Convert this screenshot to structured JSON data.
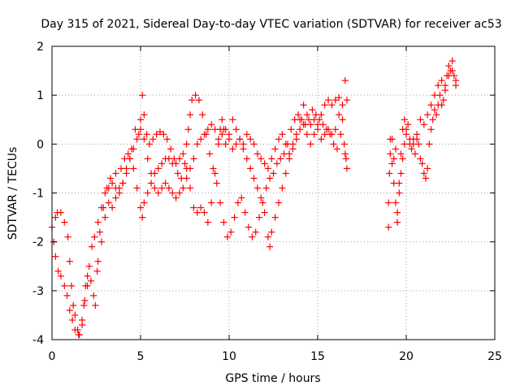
{
  "chart_data": {
    "type": "scatter",
    "title": "Day 315 of 2021, Sidereal Day-to-day VTEC variation (SDTVAR) for receiver ac53",
    "xlabel": "GPS time / hours",
    "ylabel": "SDTVAR / TECUs",
    "xlim": [
      0,
      25
    ],
    "ylim": [
      -4,
      2
    ],
    "xticks": [
      "0",
      "5",
      "10",
      "15",
      "20",
      "25"
    ],
    "yticks": [
      "-4",
      "-3",
      "-2",
      "-1",
      "0",
      "1",
      "2"
    ],
    "grid": true,
    "marker": "+",
    "series_color": "#ff0000",
    "tracks": [
      [
        [
          0.0,
          -1.7
        ],
        [
          0.2,
          -1.5
        ],
        [
          0.3,
          -1.4
        ],
        [
          0.5,
          -1.4
        ],
        [
          0.7,
          -1.6
        ],
        [
          0.9,
          -1.9
        ],
        [
          1.0,
          -2.4
        ],
        [
          1.1,
          -2.9
        ],
        [
          1.2,
          -3.3
        ],
        [
          1.3,
          -3.5
        ],
        [
          1.45,
          -3.8
        ],
        [
          1.55,
          -3.9
        ],
        [
          1.7,
          -3.7
        ],
        [
          1.8,
          -3.3
        ],
        [
          1.9,
          -2.9
        ],
        [
          2.0,
          -2.7
        ],
        [
          2.2,
          -2.8
        ],
        [
          2.35,
          -3.1
        ],
        [
          2.45,
          -3.3
        ],
        [
          2.55,
          -2.6
        ],
        [
          2.7,
          -1.8
        ],
        [
          2.9,
          -1.3
        ],
        [
          3.1,
          -0.9
        ],
        [
          3.3,
          -0.7
        ],
        [
          3.6,
          -0.6
        ],
        [
          3.9,
          -0.5
        ],
        [
          4.1,
          -0.3
        ],
        [
          4.3,
          -0.2
        ],
        [
          4.5,
          -0.1
        ],
        [
          4.7,
          0.3
        ],
        [
          4.9,
          0.2
        ],
        [
          5.0,
          0.5
        ],
        [
          5.1,
          1.0
        ],
        [
          5.2,
          0.6
        ],
        [
          5.35,
          0.2
        ],
        [
          5.5,
          0.0
        ],
        [
          5.7,
          0.1
        ],
        [
          5.9,
          0.2
        ],
        [
          6.1,
          0.25
        ],
        [
          6.3,
          0.2
        ],
        [
          6.5,
          0.1
        ],
        [
          6.7,
          -0.1
        ],
        [
          6.9,
          -0.3
        ],
        [
          7.1,
          -0.6
        ],
        [
          7.3,
          -0.7
        ],
        [
          7.5,
          -0.4
        ],
        [
          7.6,
          0.0
        ],
        [
          7.7,
          0.3
        ],
        [
          7.8,
          0.6
        ],
        [
          7.9,
          0.9
        ],
        [
          8.1,
          1.0
        ],
        [
          8.3,
          0.9
        ],
        [
          8.5,
          0.6
        ],
        [
          8.7,
          0.2
        ],
        [
          8.9,
          -0.2
        ],
        [
          9.1,
          -0.5
        ],
        [
          9.3,
          -0.8
        ],
        [
          9.5,
          -1.2
        ],
        [
          9.7,
          -1.6
        ],
        [
          9.9,
          -1.9
        ],
        [
          10.1,
          -1.8
        ],
        [
          10.3,
          -1.5
        ],
        [
          10.5,
          -1.2
        ],
        [
          10.7,
          -1.1
        ],
        [
          10.9,
          -1.4
        ],
        [
          11.1,
          -1.7
        ],
        [
          11.3,
          -1.9
        ],
        [
          11.5,
          -1.8
        ],
        [
          11.7,
          -1.5
        ],
        [
          11.9,
          -1.2
        ],
        [
          12.1,
          -0.9
        ],
        [
          12.3,
          -0.7
        ],
        [
          12.5,
          -0.6
        ],
        [
          12.7,
          -0.4
        ],
        [
          12.9,
          -0.3
        ],
        [
          13.1,
          -0.2
        ],
        [
          13.3,
          0.0
        ],
        [
          13.5,
          0.3
        ],
        [
          13.7,
          0.5
        ],
        [
          13.9,
          0.6
        ],
        [
          14.1,
          0.5
        ],
        [
          14.3,
          0.4
        ],
        [
          14.5,
          0.5
        ],
        [
          14.7,
          0.7
        ],
        [
          14.9,
          0.6
        ],
        [
          15.1,
          0.5
        ],
        [
          15.3,
          0.4
        ],
        [
          15.5,
          0.3
        ],
        [
          15.7,
          0.2
        ],
        [
          15.9,
          0.0
        ],
        [
          16.1,
          -0.1
        ],
        [
          16.3,
          0.2
        ],
        [
          16.5,
          0.0
        ],
        [
          16.6,
          -0.3
        ]
      ],
      [
        [
          0.1,
          -2.0
        ],
        [
          0.2,
          -2.3
        ],
        [
          0.35,
          -2.6
        ],
        [
          0.5,
          -2.7
        ],
        [
          0.7,
          -2.9
        ],
        [
          0.85,
          -3.1
        ],
        [
          1.0,
          -3.4
        ],
        [
          1.15,
          -3.6
        ],
        [
          1.3,
          -3.8
        ],
        [
          1.5,
          -3.9
        ],
        [
          1.7,
          -3.6
        ],
        [
          1.85,
          -3.2
        ],
        [
          2.0,
          -2.9
        ],
        [
          2.1,
          -2.5
        ],
        [
          2.25,
          -2.1
        ],
        [
          2.4,
          -1.9
        ],
        [
          2.6,
          -1.6
        ],
        [
          2.8,
          -1.3
        ],
        [
          3.0,
          -1.0
        ],
        [
          3.2,
          -0.9
        ],
        [
          3.4,
          -0.8
        ],
        [
          3.6,
          -0.9
        ],
        [
          3.8,
          -1.0
        ],
        [
          4.0,
          -0.8
        ],
        [
          4.2,
          -0.5
        ],
        [
          4.4,
          -0.3
        ],
        [
          4.6,
          -0.5
        ],
        [
          4.8,
          -0.9
        ],
        [
          5.0,
          -1.3
        ],
        [
          5.1,
          -1.5
        ],
        [
          5.2,
          -1.2
        ],
        [
          5.4,
          -1.0
        ],
        [
          5.6,
          -0.8
        ],
        [
          5.8,
          -0.6
        ],
        [
          6.0,
          -0.5
        ],
        [
          6.2,
          -0.4
        ],
        [
          6.4,
          -0.3
        ],
        [
          6.6,
          -0.3
        ],
        [
          6.8,
          -0.4
        ],
        [
          7.0,
          -0.4
        ],
        [
          7.2,
          -0.3
        ],
        [
          7.4,
          -0.2
        ],
        [
          7.6,
          -0.5
        ],
        [
          7.8,
          -0.9
        ],
        [
          8.0,
          -1.3
        ],
        [
          8.2,
          -1.4
        ],
        [
          8.4,
          -1.3
        ],
        [
          8.6,
          -1.4
        ],
        [
          8.8,
          -1.6
        ],
        [
          9.0,
          -1.2
        ],
        [
          9.2,
          -0.6
        ],
        [
          9.4,
          0.0
        ],
        [
          9.5,
          0.3
        ],
        [
          9.6,
          0.5
        ],
        [
          9.7,
          0.3
        ],
        [
          9.8,
          0.0
        ],
        [
          10.0,
          0.2
        ],
        [
          10.2,
          0.5
        ],
        [
          10.4,
          0.3
        ],
        [
          10.6,
          0.1
        ],
        [
          10.8,
          -0.1
        ],
        [
          11.0,
          -0.3
        ],
        [
          11.2,
          -0.5
        ],
        [
          11.4,
          -0.7
        ],
        [
          11.6,
          -0.9
        ],
        [
          11.8,
          -1.1
        ],
        [
          12.0,
          -1.4
        ],
        [
          12.2,
          -1.9
        ],
        [
          12.3,
          -2.1
        ],
        [
          12.4,
          -1.8
        ],
        [
          12.6,
          -1.5
        ],
        [
          12.8,
          -1.2
        ],
        [
          13.0,
          -0.9
        ],
        [
          13.2,
          -0.6
        ],
        [
          13.4,
          -0.3
        ],
        [
          13.6,
          0.0
        ],
        [
          13.8,
          0.2
        ],
        [
          14.0,
          0.5
        ],
        [
          14.2,
          0.8
        ],
        [
          14.4,
          0.6
        ],
        [
          14.6,
          0.4
        ],
        [
          14.8,
          0.5
        ],
        [
          15.0,
          0.4
        ],
        [
          15.2,
          0.6
        ],
        [
          15.4,
          0.8
        ],
        [
          15.6,
          0.9
        ],
        [
          15.8,
          0.8
        ],
        [
          16.0,
          0.9
        ],
        [
          16.2,
          0.95
        ],
        [
          16.4,
          0.8
        ],
        [
          16.55,
          1.3
        ],
        [
          16.65,
          0.9
        ]
      ],
      [
        [
          2.6,
          -2.4
        ],
        [
          2.8,
          -2.0
        ],
        [
          3.0,
          -1.5
        ],
        [
          3.2,
          -1.2
        ],
        [
          3.4,
          -1.3
        ],
        [
          3.6,
          -1.1
        ],
        [
          3.8,
          -0.9
        ],
        [
          4.0,
          -0.8
        ],
        [
          4.2,
          -0.6
        ],
        [
          4.4,
          -0.3
        ],
        [
          4.6,
          -0.1
        ],
        [
          4.8,
          0.1
        ],
        [
          5.0,
          0.3
        ],
        [
          5.2,
          0.1
        ],
        [
          5.4,
          -0.3
        ],
        [
          5.6,
          -0.6
        ],
        [
          5.8,
          -0.9
        ],
        [
          6.0,
          -1.0
        ],
        [
          6.2,
          -0.9
        ],
        [
          6.4,
          -0.8
        ],
        [
          6.6,
          -0.9
        ],
        [
          6.8,
          -1.0
        ],
        [
          7.0,
          -1.1
        ],
        [
          7.2,
          -1.0
        ],
        [
          7.4,
          -0.9
        ],
        [
          7.6,
          -0.7
        ],
        [
          7.8,
          -0.5
        ],
        [
          8.0,
          -0.3
        ],
        [
          8.2,
          0.0
        ],
        [
          8.4,
          0.1
        ],
        [
          8.6,
          0.2
        ],
        [
          8.8,
          0.3
        ],
        [
          9.0,
          0.4
        ],
        [
          9.2,
          0.3
        ],
        [
          9.4,
          0.1
        ],
        [
          9.6,
          0.2
        ],
        [
          9.8,
          0.3
        ],
        [
          10.0,
          0.1
        ],
        [
          10.2,
          -0.1
        ],
        [
          10.4,
          0.0
        ],
        [
          10.6,
          0.1
        ],
        [
          10.8,
          0.0
        ],
        [
          11.0,
          0.2
        ],
        [
          11.2,
          0.1
        ],
        [
          11.4,
          0.0
        ],
        [
          11.6,
          -0.2
        ],
        [
          11.8,
          -0.3
        ],
        [
          12.0,
          -0.4
        ],
        [
          12.2,
          -0.5
        ],
        [
          12.4,
          -0.3
        ],
        [
          12.6,
          -0.1
        ],
        [
          12.8,
          0.1
        ],
        [
          13.0,
          0.2
        ],
        [
          13.2,
          0.0
        ],
        [
          13.4,
          -0.2
        ],
        [
          13.6,
          -0.1
        ],
        [
          13.8,
          0.1
        ],
        [
          14.0,
          0.3
        ],
        [
          14.2,
          0.4
        ],
        [
          14.4,
          0.2
        ],
        [
          14.6,
          0.0
        ],
        [
          14.8,
          0.2
        ],
        [
          15.0,
          0.3
        ],
        [
          15.2,
          0.1
        ],
        [
          15.4,
          0.2
        ],
        [
          15.6,
          0.3
        ],
        [
          15.8,
          0.2
        ],
        [
          16.0,
          0.3
        ],
        [
          16.2,
          0.6
        ],
        [
          16.4,
          0.5
        ],
        [
          16.55,
          -0.2
        ],
        [
          16.65,
          -0.5
        ]
      ],
      [
        [
          19.0,
          -1.7
        ],
        [
          19.0,
          -1.2
        ],
        [
          19.05,
          -0.6
        ],
        [
          19.1,
          -0.2
        ],
        [
          19.2,
          0.1
        ],
        [
          19.3,
          -0.3
        ],
        [
          19.4,
          -0.1
        ],
        [
          19.5,
          -1.4
        ],
        [
          19.6,
          -1.0
        ],
        [
          19.7,
          -0.6
        ],
        [
          19.8,
          -0.3
        ],
        [
          19.9,
          0.0
        ],
        [
          20.0,
          0.2
        ],
        [
          20.1,
          0.4
        ],
        [
          20.2,
          0.1
        ],
        [
          20.3,
          -0.1
        ],
        [
          20.4,
          0.0
        ],
        [
          20.5,
          -0.2
        ],
        [
          20.6,
          0.1
        ],
        [
          20.7,
          0.0
        ],
        [
          20.8,
          -0.3
        ],
        [
          20.9,
          -0.4
        ],
        [
          21.0,
          -0.6
        ],
        [
          21.1,
          -0.7
        ],
        [
          21.2,
          -0.5
        ],
        [
          21.3,
          0.0
        ],
        [
          21.4,
          0.3
        ],
        [
          21.5,
          0.5
        ],
        [
          21.6,
          0.7
        ],
        [
          21.7,
          0.6
        ],
        [
          21.8,
          0.8
        ],
        [
          21.9,
          1.0
        ],
        [
          22.0,
          0.8
        ],
        [
          22.1,
          0.9
        ],
        [
          22.2,
          1.1
        ],
        [
          22.3,
          1.4
        ],
        [
          22.4,
          1.6
        ],
        [
          22.5,
          1.5
        ],
        [
          22.6,
          1.7
        ],
        [
          22.7,
          1.4
        ],
        [
          22.8,
          1.2
        ]
      ],
      [
        [
          19.1,
          0.1
        ],
        [
          19.2,
          -0.4
        ],
        [
          19.3,
          -0.8
        ],
        [
          19.4,
          -1.2
        ],
        [
          19.5,
          -1.6
        ],
        [
          19.6,
          -0.8
        ],
        [
          19.7,
          -0.2
        ],
        [
          19.8,
          0.3
        ],
        [
          19.9,
          0.5
        ],
        [
          20.0,
          0.3
        ],
        [
          20.2,
          0.0
        ],
        [
          20.4,
          0.1
        ],
        [
          20.6,
          0.2
        ],
        [
          20.8,
          0.5
        ],
        [
          21.0,
          0.4
        ],
        [
          21.2,
          0.6
        ],
        [
          21.4,
          0.8
        ],
        [
          21.6,
          1.0
        ],
        [
          21.8,
          1.2
        ],
        [
          22.0,
          1.3
        ],
        [
          22.2,
          1.2
        ],
        [
          22.4,
          1.4
        ],
        [
          22.6,
          1.5
        ],
        [
          22.8,
          1.3
        ]
      ]
    ]
  }
}
